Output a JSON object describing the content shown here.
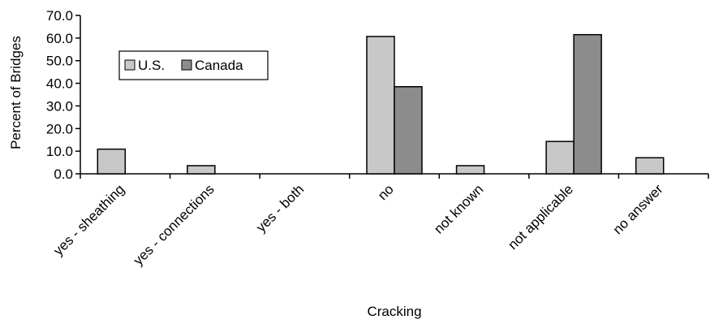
{
  "chart_data": {
    "type": "bar",
    "xlabel": "Cracking",
    "ylabel": "Percent of Bridges",
    "ylim": [
      0,
      70
    ],
    "yticks": [
      0,
      10,
      20,
      30,
      40,
      50,
      60,
      70
    ],
    "ytick_labels": [
      "0.0",
      "10.0",
      "20.0",
      "30.0",
      "40.0",
      "50.0",
      "60.0",
      "70.0"
    ],
    "categories": [
      "yes - sheathing",
      "yes - connections",
      "yes - both",
      "no",
      "not known",
      "not applicable",
      "no answer"
    ],
    "series": [
      {
        "name": "U.S.",
        "color": "#c8c8c8",
        "values": [
          10.9,
          3.6,
          0.0,
          60.7,
          3.6,
          14.3,
          7.1
        ]
      },
      {
        "name": "Canada",
        "color": "#8c8c8c",
        "values": [
          0.0,
          0.0,
          0.0,
          38.5,
          0.0,
          61.5,
          0.0
        ]
      }
    ],
    "grid": false,
    "legend_position": "top-left"
  }
}
